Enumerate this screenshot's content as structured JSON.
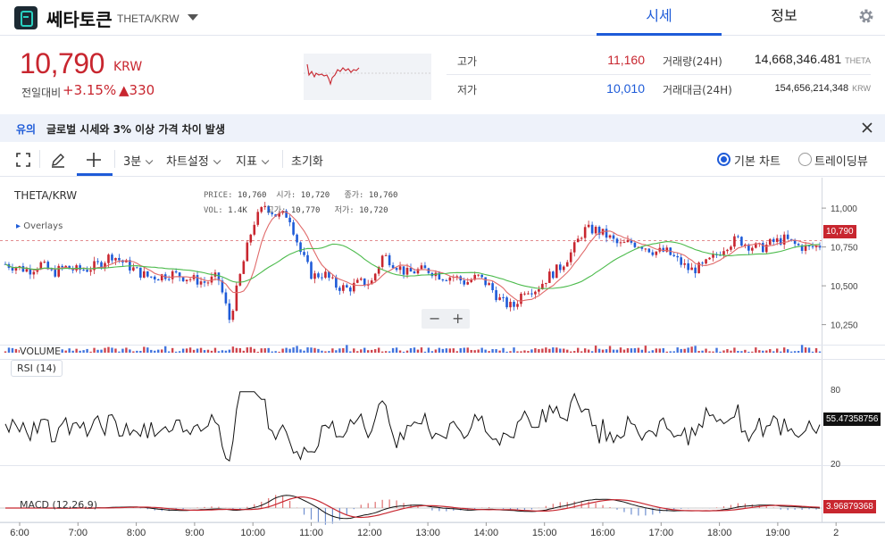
{
  "header": {
    "coin_name": "쎄타토큰",
    "pair": "THETA/KRW",
    "tabs": [
      "시세",
      "정보"
    ]
  },
  "price": {
    "current": "10,790",
    "unit": "KRW",
    "change_label": "전일대비",
    "change_pct": "+3.15%",
    "change_abs": "▲330"
  },
  "stats": {
    "high_label": "고가",
    "high": "11,160",
    "low_label": "저가",
    "low": "10,010",
    "volume_label": "거래량(24H)",
    "volume": "14,668,346.481",
    "volume_unit": "THETA",
    "amount_label": "거래대금(24H)",
    "amount": "154,656,214,348",
    "amount_unit": "KRW"
  },
  "notice": {
    "tag": "유의",
    "text": "글로벌 시세와 3% 이상 가격 차이 발생"
  },
  "toolbar": {
    "interval": "3분",
    "chart_settings": "차트설정",
    "indicators": "지표",
    "reset": "초기화",
    "mode_basic": "기본 차트",
    "mode_tradingview": "트레이딩뷰"
  },
  "colors": {
    "up": "#c8262f",
    "down": "#1e5bd8",
    "ma_fast": "#e06a6a",
    "ma_slow": "#4cbb4c"
  },
  "chart_data": {
    "type": "candlestick",
    "symbol": "THETA/KRW",
    "ohlc_readout": {
      "price_label": "PRICE:",
      "price": "10,760",
      "open_label": "시가:",
      "open": "10,720",
      "close_label": "종가:",
      "close": "10,760",
      "vol_label": "VOL:",
      "vol": "1.4K",
      "high_label": "고가:",
      "high": "10,770",
      "low_label": "저가:",
      "low": "10,720"
    },
    "overlays_label": "Overlays",
    "price_axis": [
      "11,000",
      "10,750",
      "10,500",
      "10,250"
    ],
    "price_ylim": [
      10150,
      11150
    ],
    "current_price_tag": "10,790",
    "time_axis": [
      "6:00",
      "7:00",
      "8:00",
      "9:00",
      "10:00",
      "11:00",
      "12:00",
      "13:00",
      "14:00",
      "15:00",
      "16:00",
      "17:00",
      "18:00",
      "19:00",
      "2"
    ],
    "close_trend": [
      10640,
      10620,
      10600,
      10640,
      10580,
      10620,
      10600,
      10610,
      10640,
      10700,
      10650,
      10600,
      10560,
      10560,
      10580,
      10560,
      10540,
      10520,
      10560,
      10280,
      10600,
      10900,
      11020,
      10950,
      10960,
      10720,
      10560,
      10580,
      10500,
      10480,
      10520,
      10520,
      10700,
      10640,
      10580,
      10600,
      10600,
      10560,
      10560,
      10520,
      10560,
      10500,
      10400,
      10360,
      10480,
      10480,
      10560,
      10620,
      10720,
      10860,
      10860,
      10820,
      10760,
      10780,
      10760,
      10720,
      10720,
      10660,
      10600,
      10620,
      10680,
      10760,
      10800,
      10760,
      10740,
      10780,
      10800,
      10760,
      10740,
      10760
    ],
    "volume_label": "VOLUME",
    "rsi_label": "RSI (14)",
    "rsi_axis": [
      "80",
      "20"
    ],
    "rsi_last": "55.47358756",
    "macd_label": "MACD (12,26,9)",
    "macd_last": "3.96879368"
  }
}
